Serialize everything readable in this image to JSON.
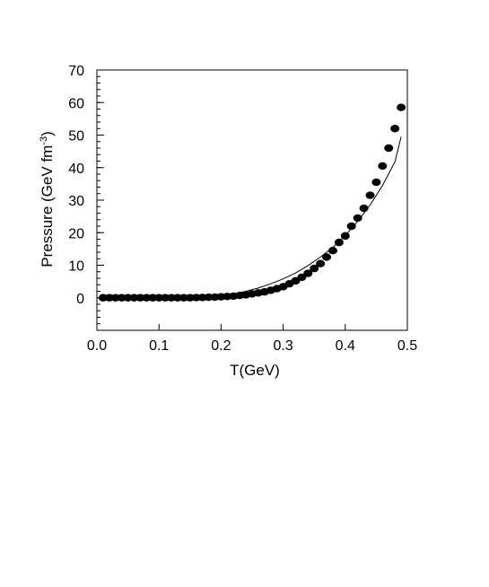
{
  "chart_data": {
    "type": "scatter",
    "title": "",
    "xlabel": "T(GeV)",
    "ylabel_main": "Pressure (GeV fm",
    "ylabel_sup": "-3",
    "ylabel_close": ")",
    "xlim": [
      0.0,
      0.5
    ],
    "ylim": [
      -10,
      70
    ],
    "x_ticks": [
      0.0,
      0.1,
      0.2,
      0.3,
      0.4,
      0.5
    ],
    "x_tick_labels": [
      "0.0",
      "0.1",
      "0.2",
      "0.3",
      "0.4",
      "0.5"
    ],
    "y_ticks": [
      0,
      10,
      20,
      30,
      40,
      50,
      60,
      70
    ],
    "y_tick_labels": [
      "0",
      "10",
      "20",
      "30",
      "40",
      "50",
      "60",
      "70"
    ],
    "grid": false,
    "series": [
      {
        "kind": "points",
        "color": "#000000",
        "x": [
          0.01,
          0.02,
          0.03,
          0.04,
          0.05,
          0.06,
          0.07,
          0.08,
          0.09,
          0.1,
          0.11,
          0.12,
          0.13,
          0.14,
          0.15,
          0.16,
          0.17,
          0.18,
          0.19,
          0.2,
          0.21,
          0.22,
          0.23,
          0.24,
          0.25,
          0.26,
          0.27,
          0.28,
          0.29,
          0.3,
          0.31,
          0.32,
          0.33,
          0.34,
          0.35,
          0.36,
          0.37,
          0.38,
          0.39,
          0.4,
          0.41,
          0.42,
          0.43,
          0.44,
          0.45,
          0.46,
          0.47,
          0.48,
          0.49
        ],
        "y": [
          0,
          0,
          0,
          0,
          0,
          0,
          0,
          0,
          0,
          0,
          0,
          0,
          0,
          0,
          0,
          0.05,
          0.1,
          0.15,
          0.2,
          0.3,
          0.4,
          0.5,
          0.7,
          0.9,
          1.2,
          1.5,
          1.8,
          2.3,
          2.8,
          3.4,
          4.3,
          5.2,
          6.3,
          7.5,
          9.0,
          10.5,
          12.5,
          14.5,
          17.0,
          19.0,
          22.0,
          24.5,
          27.5,
          31.5,
          35.5,
          40.5,
          46.0,
          52.0,
          58.5
        ]
      },
      {
        "kind": "line",
        "color": "#000000",
        "x": [
          0.18,
          0.2,
          0.22,
          0.24,
          0.26,
          0.28,
          0.3,
          0.32,
          0.34,
          0.36,
          0.38,
          0.4,
          0.42,
          0.44,
          0.46,
          0.48,
          0.49
        ],
        "y": [
          0.1,
          0.6,
          1.1,
          2.0,
          3.0,
          4.3,
          5.8,
          7.6,
          9.9,
          12.5,
          15.5,
          19.1,
          23.5,
          28.5,
          34.5,
          41.8,
          49.5
        ]
      }
    ]
  }
}
